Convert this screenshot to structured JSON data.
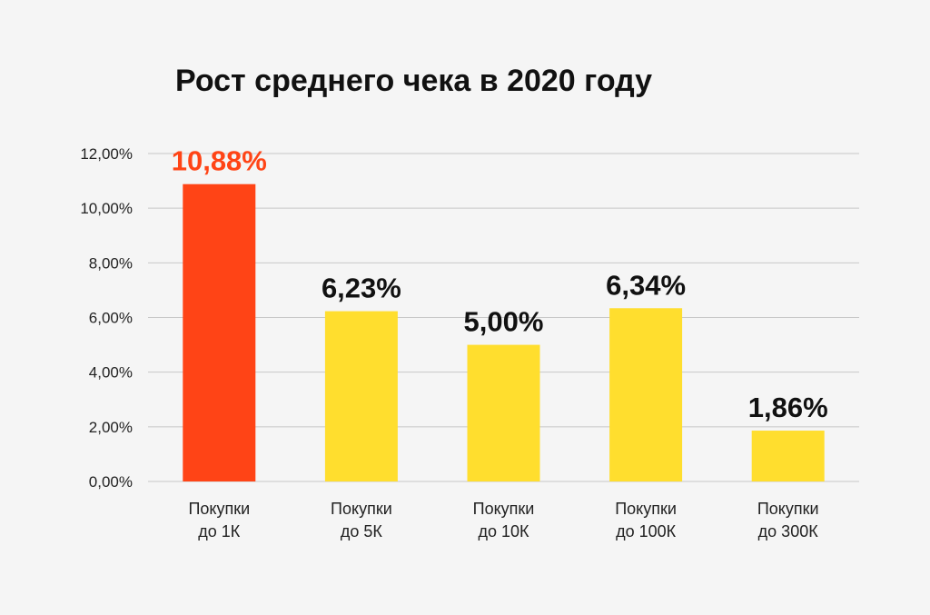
{
  "chart_data": {
    "type": "bar",
    "title": "Рост среднего чека в 2020 году",
    "xlabel": "",
    "ylabel": "",
    "categories": [
      [
        "Покупки",
        "до 1К"
      ],
      [
        "Покупки",
        "до 5К"
      ],
      [
        "Покупки",
        "до 10К"
      ],
      [
        "Покупки",
        "до 100К"
      ],
      [
        "Покупки",
        "до 300К"
      ]
    ],
    "values": [
      10.88,
      6.23,
      5.0,
      6.34,
      1.86
    ],
    "data_labels": [
      "10,88%",
      "6,23%",
      "5,00%",
      "6,34%",
      "1,86%"
    ],
    "y_ticks": [
      0,
      2,
      4,
      6,
      8,
      10,
      12
    ],
    "y_tick_labels": [
      "0,00%",
      "2,00%",
      "4,00%",
      "6,00%",
      "8,00%",
      "10,00%",
      "12,00%"
    ],
    "ylim": [
      0,
      12
    ],
    "grid": true,
    "legend": "none",
    "colors": {
      "highlight_bar": "#ff4416",
      "highlight_label": "#ff4416",
      "bar": "#ffde2e",
      "label": "#111111",
      "grid": "#c8c8c8",
      "axis_text": "#222222",
      "background": "#f5f5f5"
    }
  }
}
